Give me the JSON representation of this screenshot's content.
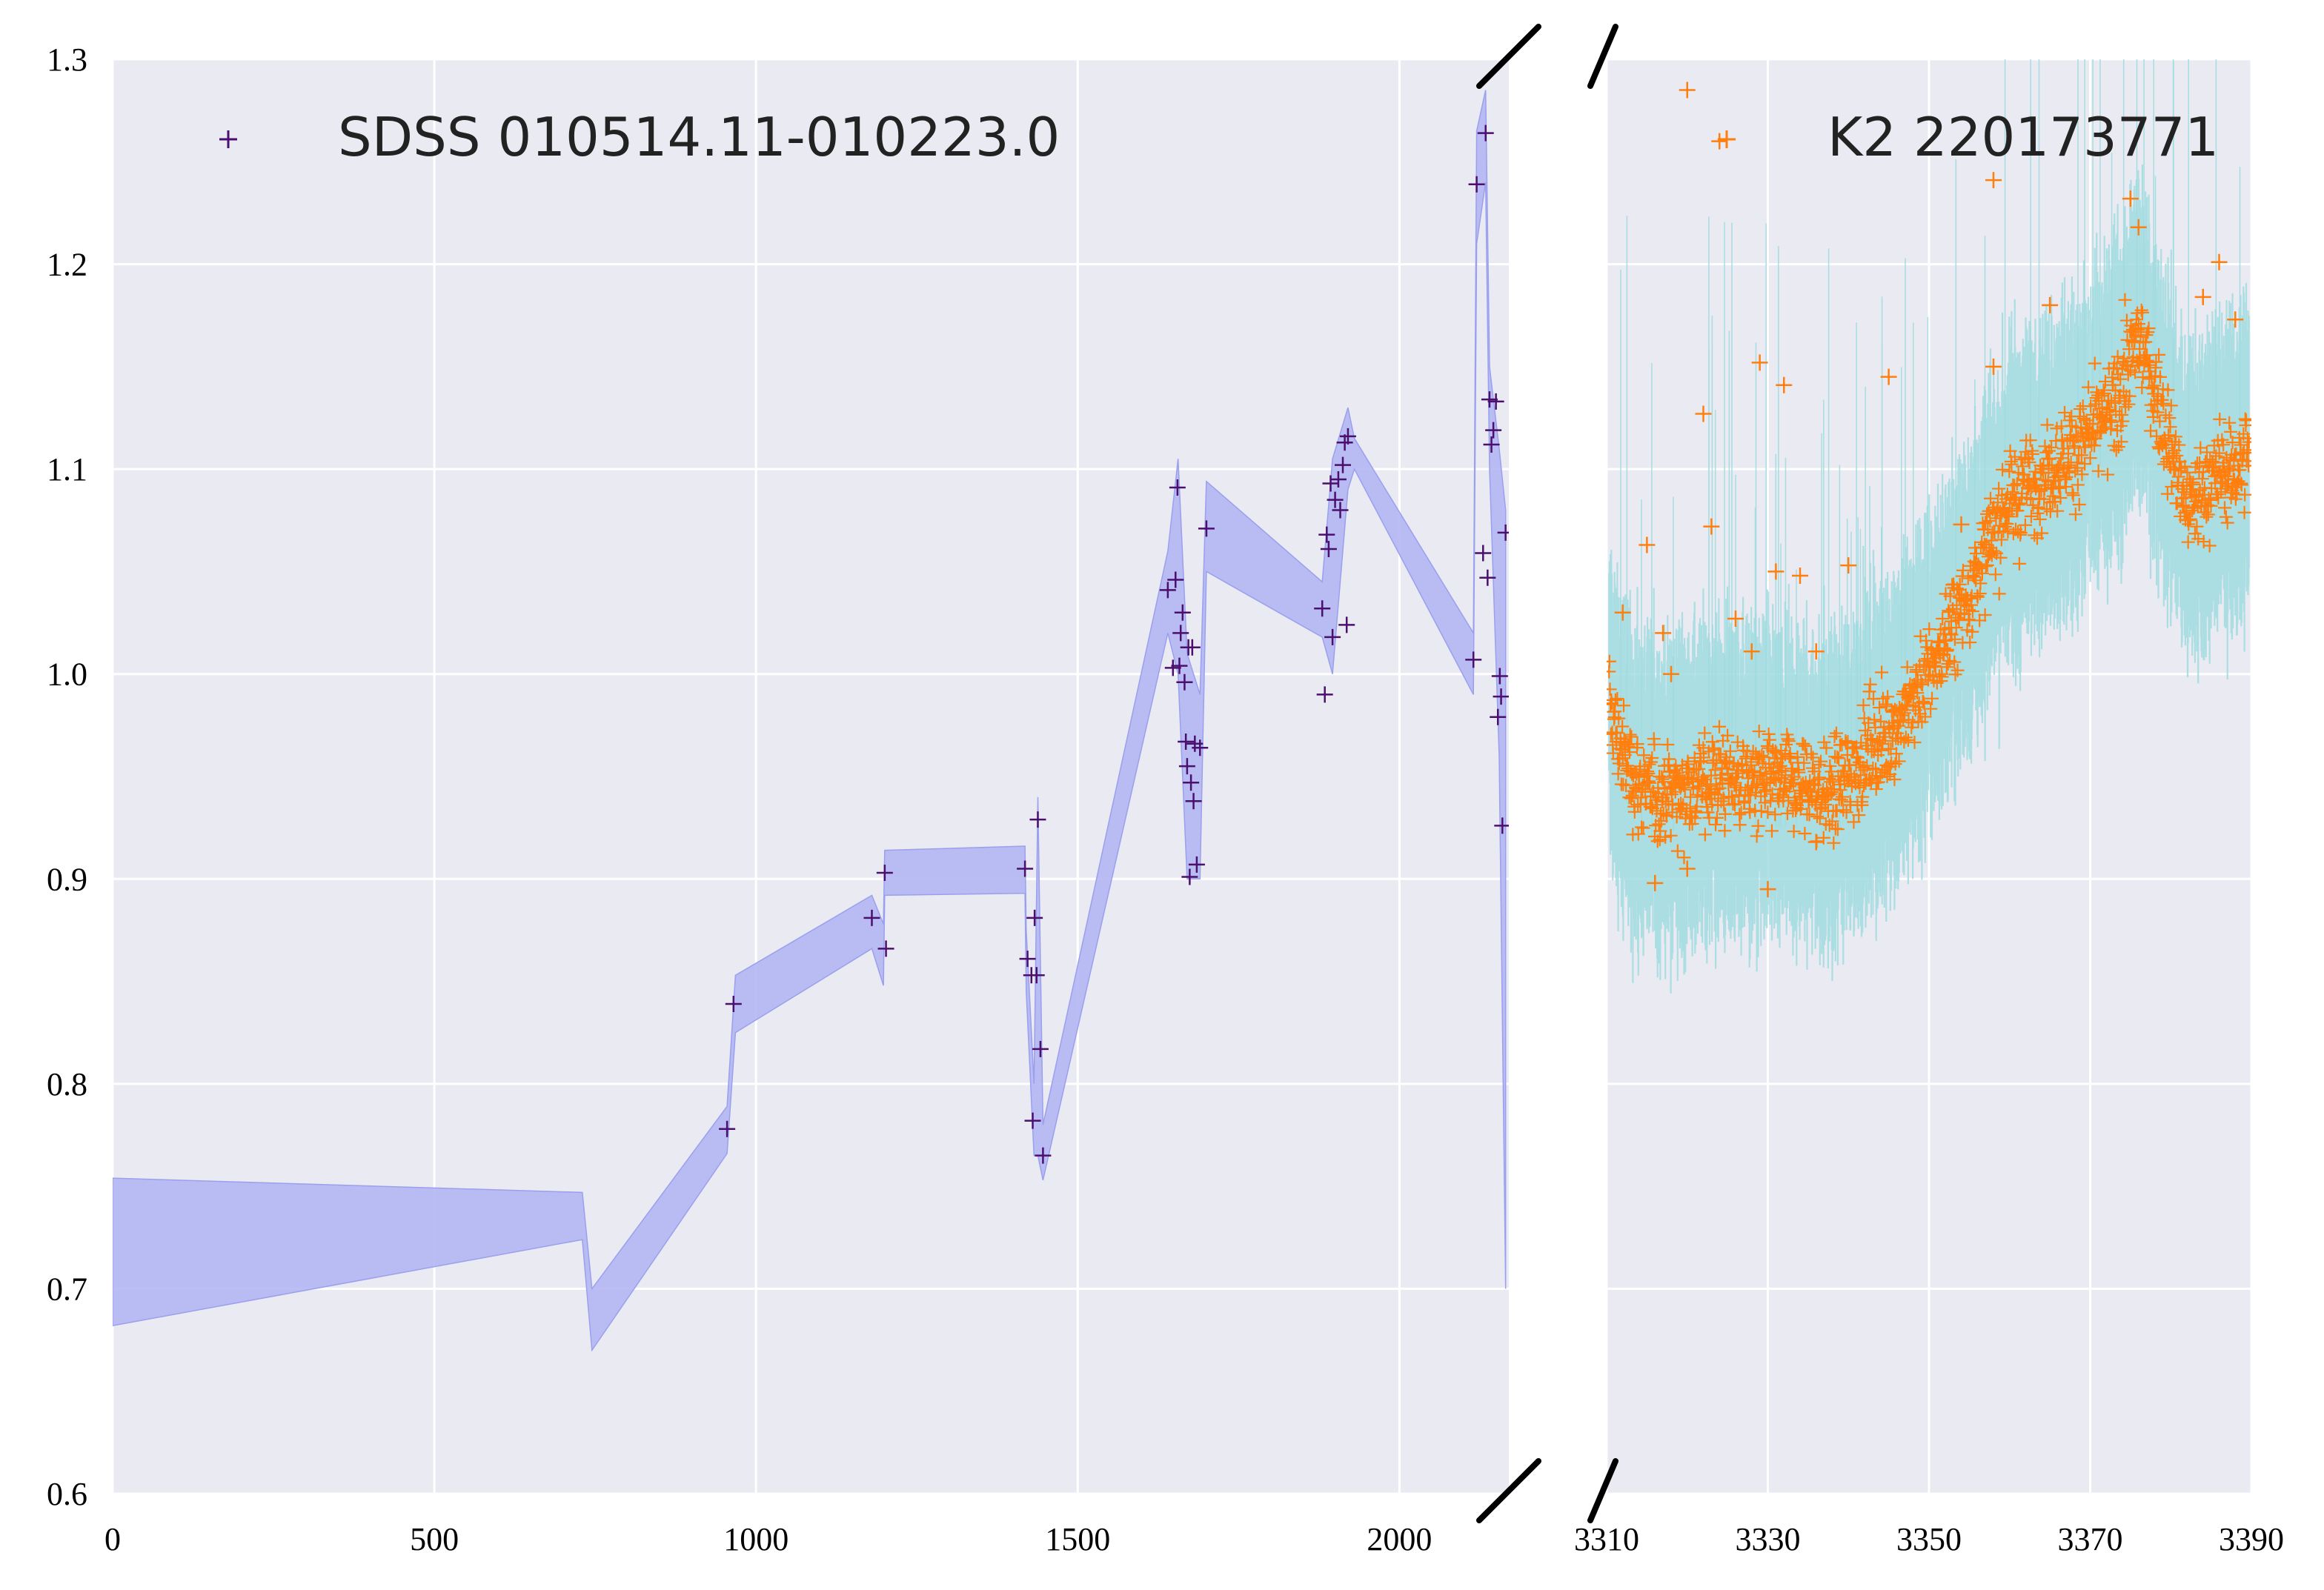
{
  "chart_data": [
    {
      "type": "scatter",
      "panel": "left",
      "xlim": [
        0,
        2170
      ],
      "ylim": [
        0.6,
        1.3
      ],
      "x_ticks": [
        0,
        500,
        1000,
        1500,
        2000
      ],
      "x_tick_labels": [
        "0",
        "500",
        "1000",
        "1500",
        "2000"
      ],
      "y_ticks": [
        0.6,
        0.7,
        0.8,
        0.9,
        1.0,
        1.1,
        1.2,
        1.3
      ],
      "y_tick_labels": [
        "0.6",
        "0.7",
        "0.8",
        "0.9",
        "1.0",
        "1.1",
        "1.2",
        "1.3"
      ],
      "grid": true,
      "legend_position": "top-left",
      "marker_color": "#4b0f6e",
      "band_color": "#b4b6f3",
      "series": [
        {
          "name": "SDSS 010514.11-010223.0",
          "points": [
            [
              955,
              0.778
            ],
            [
              965,
              0.839
            ],
            [
              1180,
              0.881
            ],
            [
              1200,
              0.903
            ],
            [
              1202,
              0.866
            ],
            [
              1418,
              0.905
            ],
            [
              1422,
              0.861
            ],
            [
              1428,
              0.853
            ],
            [
              1430,
              0.782
            ],
            [
              1433,
              0.881
            ],
            [
              1436,
              0.853
            ],
            [
              1438,
              0.929
            ],
            [
              1442,
              0.817
            ],
            [
              1446,
              0.765
            ],
            [
              1640,
              1.041
            ],
            [
              1648,
              1.003
            ],
            [
              1652,
              1.046
            ],
            [
              1655,
              1.091
            ],
            [
              1658,
              1.004
            ],
            [
              1660,
              1.02
            ],
            [
              1663,
              1.03
            ],
            [
              1666,
              0.996
            ],
            [
              1668,
              0.967
            ],
            [
              1670,
              0.955
            ],
            [
              1672,
              1.013
            ],
            [
              1674,
              0.901
            ],
            [
              1676,
              0.947
            ],
            [
              1678,
              1.013
            ],
            [
              1680,
              0.938
            ],
            [
              1682,
              0.966
            ],
            [
              1685,
              0.907
            ],
            [
              1690,
              0.964
            ],
            [
              1700,
              1.071
            ],
            [
              1880,
              1.032
            ],
            [
              1884,
              0.99
            ],
            [
              1887,
              1.068
            ],
            [
              1890,
              1.061
            ],
            [
              1893,
              1.093
            ],
            [
              1896,
              1.018
            ],
            [
              1900,
              1.085
            ],
            [
              1905,
              1.095
            ],
            [
              1908,
              1.08
            ],
            [
              1912,
              1.102
            ],
            [
              1915,
              1.113
            ],
            [
              1918,
              1.024
            ],
            [
              1920,
              1.116
            ],
            [
              2115,
              1.007
            ],
            [
              2120,
              1.239
            ],
            [
              2130,
              1.059
            ],
            [
              2134,
              1.264
            ],
            [
              2137,
              1.047
            ],
            [
              2140,
              1.134
            ],
            [
              2143,
              1.112
            ],
            [
              2146,
              1.119
            ],
            [
              2150,
              1.133
            ],
            [
              2153,
              0.979
            ],
            [
              2156,
              0.999
            ],
            [
              2158,
              0.989
            ],
            [
              2160,
              0.926
            ],
            [
              2165,
              1.069
            ]
          ],
          "band_upper": [
            [
              0,
              0.754
            ],
            [
              730,
              0.747
            ],
            [
              745,
              0.7
            ],
            [
              955,
              0.789
            ],
            [
              968,
              0.853
            ],
            [
              1180,
              0.892
            ],
            [
              1198,
              0.878
            ],
            [
              1200,
              0.914
            ],
            [
              1418,
              0.916
            ],
            [
              1420,
              0.875
            ],
            [
              1432,
              0.8
            ],
            [
              1438,
              0.94
            ],
            [
              1446,
              0.78
            ],
            [
              1640,
              1.06
            ],
            [
              1656,
              1.105
            ],
            [
              1670,
              1.01
            ],
            [
              1690,
              0.99
            ],
            [
              1700,
              1.094
            ],
            [
              1880,
              1.045
            ],
            [
              1896,
              1.105
            ],
            [
              1920,
              1.13
            ],
            [
              1930,
              1.115
            ],
            [
              2115,
              1.02
            ],
            [
              2120,
              1.265
            ],
            [
              2134,
              1.285
            ],
            [
              2140,
              1.15
            ],
            [
              2155,
              1.11
            ],
            [
              2165,
              1.08
            ]
          ],
          "band_lower": [
            [
              2165,
              0.7
            ],
            [
              2155,
              0.96
            ],
            [
              2140,
              1.1
            ],
            [
              2134,
              1.24
            ],
            [
              2120,
              1.21
            ],
            [
              2115,
              0.99
            ],
            [
              1930,
              1.1
            ],
            [
              1920,
              1.09
            ],
            [
              1896,
              1.0
            ],
            [
              1880,
              1.018
            ],
            [
              1700,
              1.05
            ],
            [
              1690,
              0.9
            ],
            [
              1670,
              0.9
            ],
            [
              1656,
              1.0
            ],
            [
              1640,
              1.02
            ],
            [
              1446,
              0.753
            ],
            [
              1438,
              0.765
            ],
            [
              1432,
              0.765
            ],
            [
              1420,
              0.845
            ],
            [
              1418,
              0.893
            ],
            [
              1200,
              0.892
            ],
            [
              1198,
              0.848
            ],
            [
              1180,
              0.866
            ],
            [
              968,
              0.825
            ],
            [
              955,
              0.766
            ],
            [
              745,
              0.67
            ],
            [
              730,
              0.724
            ],
            [
              0,
              0.682
            ]
          ]
        }
      ]
    },
    {
      "type": "scatter",
      "panel": "right",
      "xlim": [
        3310,
        3390
      ],
      "ylim": [
        0.6,
        1.3
      ],
      "x_ticks": [
        3310,
        3330,
        3350,
        3370,
        3390
      ],
      "x_tick_labels": [
        "3310",
        "3330",
        "3350",
        "3370",
        "3390"
      ],
      "grid": true,
      "legend_position": "top-right",
      "marker_color": "#ff7f0e",
      "band_color": "#9fdcdf",
      "series": [
        {
          "name": "K2 220173771",
          "trend": [
            [
              3310,
              0.99
            ],
            [
              3312,
              0.96
            ],
            [
              3315,
              0.94
            ],
            [
              3320,
              0.945
            ],
            [
              3325,
              0.95
            ],
            [
              3330,
              0.945
            ],
            [
              3335,
              0.945
            ],
            [
              3338,
              0.94
            ],
            [
              3342,
              0.96
            ],
            [
              3346,
              0.975
            ],
            [
              3350,
              1.0
            ],
            [
              3355,
              1.04
            ],
            [
              3360,
              1.085
            ],
            [
              3365,
              1.1
            ],
            [
              3370,
              1.115
            ],
            [
              3373,
              1.13
            ],
            [
              3376,
              1.165
            ],
            [
              3379,
              1.125
            ],
            [
              3382,
              1.08
            ],
            [
              3385,
              1.095
            ],
            [
              3388,
              1.1
            ],
            [
              3390,
              1.11
            ]
          ],
          "scatter_width": 0.025,
          "band_halfwidth": 0.06,
          "outliers": [
            [
              3312,
              1.03
            ],
            [
              3315,
              1.063
            ],
            [
              3317,
              1.02
            ],
            [
              3318,
              1.0
            ],
            [
              3320,
              1.285
            ],
            [
              3322,
              1.127
            ],
            [
              3323,
              1.072
            ],
            [
              3324,
              1.26
            ],
            [
              3326,
              1.027
            ],
            [
              3328,
              1.011
            ],
            [
              3329,
              1.152
            ],
            [
              3331,
              1.05
            ],
            [
              3332,
              1.141
            ],
            [
              3334,
              1.048
            ],
            [
              3336,
              1.011
            ],
            [
              3340,
              1.053
            ],
            [
              3345,
              1.145
            ],
            [
              3354,
              1.073
            ],
            [
              3358,
              1.241
            ],
            [
              3358,
              1.15
            ],
            [
              3365,
              1.18
            ],
            [
              3375,
              1.232
            ],
            [
              3376,
              1.218
            ],
            [
              3384,
              1.184
            ],
            [
              3386,
              1.201
            ],
            [
              3388,
              1.173
            ],
            [
              3316,
              0.898
            ],
            [
              3330,
              0.895
            ],
            [
              3336,
              0.918
            ],
            [
              3320,
              0.905
            ]
          ]
        }
      ]
    }
  ]
}
